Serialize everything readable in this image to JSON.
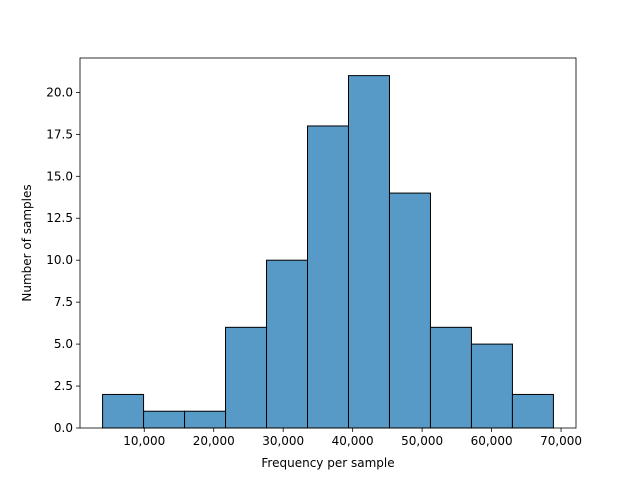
{
  "chart_data": {
    "type": "bar",
    "title": "",
    "xlabel": "Frequency per sample",
    "ylabel": "Number of samples",
    "bins": [
      {
        "start": 4000,
        "end": 9900,
        "count": 2
      },
      {
        "start": 9900,
        "end": 15800,
        "count": 1
      },
      {
        "start": 15800,
        "end": 21700,
        "count": 1
      },
      {
        "start": 21700,
        "end": 27600,
        "count": 6
      },
      {
        "start": 27600,
        "end": 33500,
        "count": 10
      },
      {
        "start": 33500,
        "end": 39400,
        "count": 18
      },
      {
        "start": 39400,
        "end": 45300,
        "count": 21
      },
      {
        "start": 45300,
        "end": 51200,
        "count": 14
      },
      {
        "start": 51200,
        "end": 57100,
        "count": 6
      },
      {
        "start": 57100,
        "end": 63000,
        "count": 5
      },
      {
        "start": 63000,
        "end": 68900,
        "count": 2
      }
    ],
    "xlim": [
      750,
      72150
    ],
    "ylim": [
      0,
      22.05
    ],
    "x_ticks": [
      10000,
      20000,
      30000,
      40000,
      50000,
      60000,
      70000
    ],
    "x_tick_labels": [
      "10,000",
      "20,000",
      "30,000",
      "40,000",
      "50,000",
      "60,000",
      "70,000"
    ],
    "y_ticks": [
      0,
      2.5,
      5,
      7.5,
      10,
      12.5,
      15,
      17.5,
      20
    ],
    "y_tick_labels": [
      "0.0",
      "2.5",
      "5.0",
      "7.5",
      "10.0",
      "12.5",
      "15.0",
      "17.5",
      "20.0"
    ],
    "bar_color": "#5799c7",
    "edge_color": "#000000",
    "grid": false,
    "legend": "none"
  }
}
